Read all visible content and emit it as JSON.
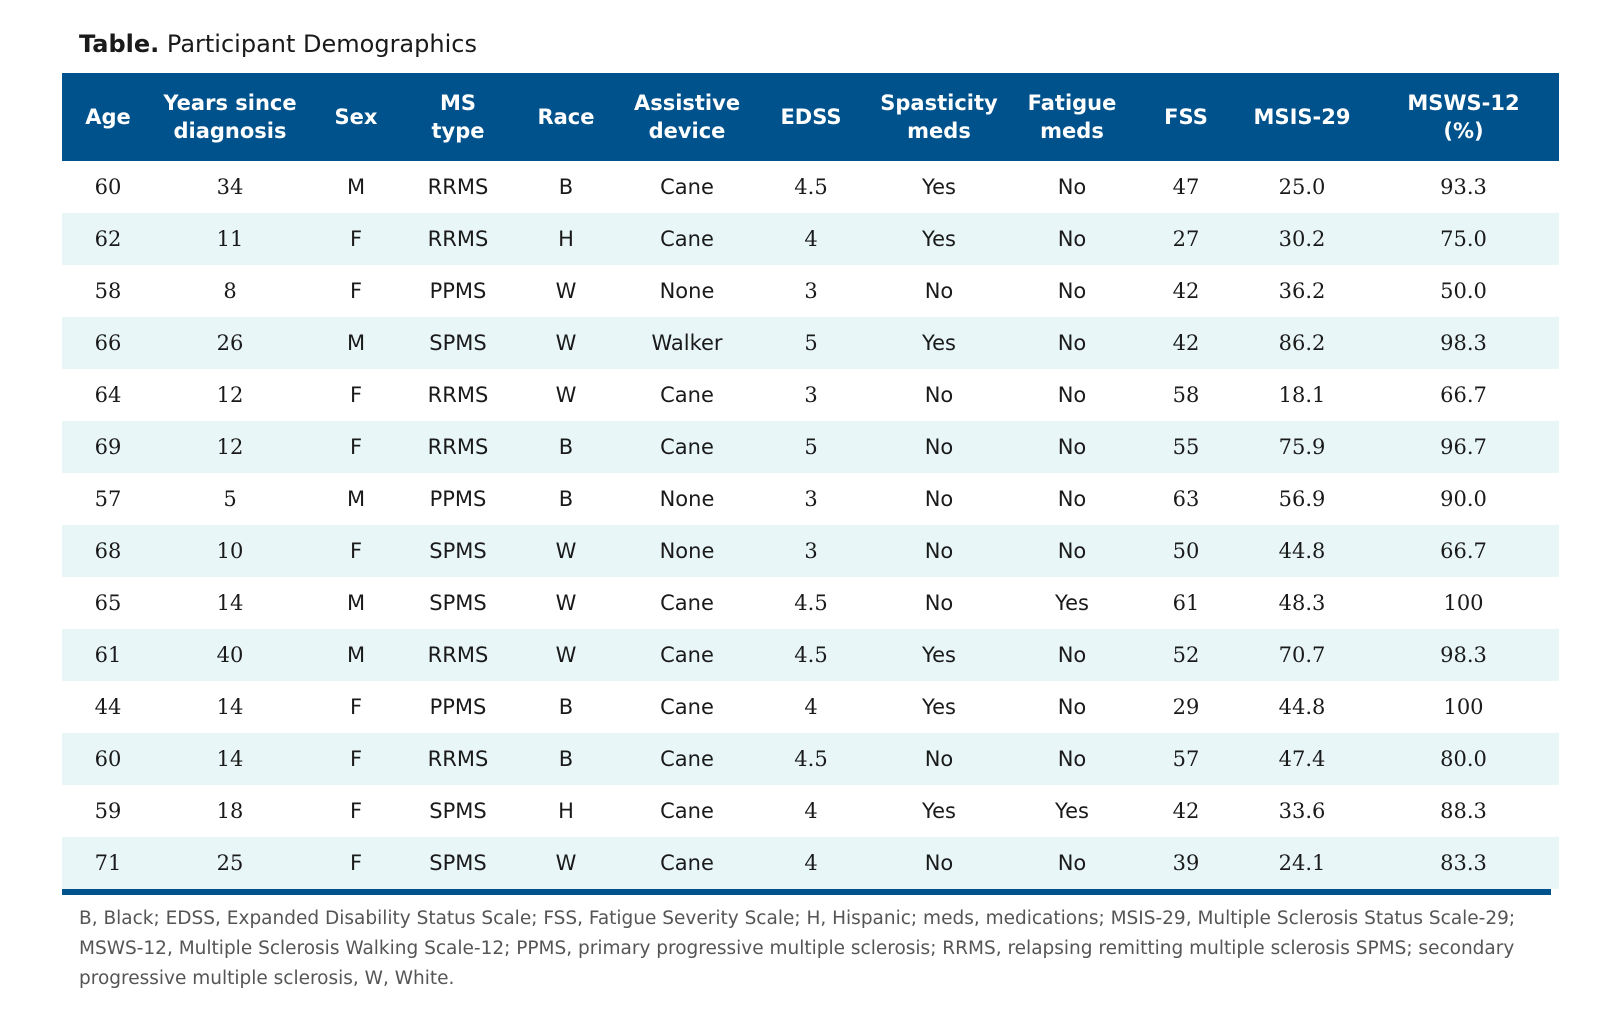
{
  "title": {
    "lead": "Table.",
    "text": "Participant Demographics"
  },
  "table": {
    "columns": [
      {
        "key": "age",
        "line1": "Age",
        "line2": ""
      },
      {
        "key": "years",
        "line1": "Years since",
        "line2": "diagnosis"
      },
      {
        "key": "sex",
        "line1": "Sex",
        "line2": ""
      },
      {
        "key": "ms_type",
        "line1": "MS",
        "line2": "type"
      },
      {
        "key": "race",
        "line1": "Race",
        "line2": ""
      },
      {
        "key": "assistive",
        "line1": "Assistive",
        "line2": "device"
      },
      {
        "key": "edss",
        "line1": "EDSS",
        "line2": ""
      },
      {
        "key": "spasticity",
        "line1": "Spasticity",
        "line2": "meds"
      },
      {
        "key": "fatigue",
        "line1": "Fatigue",
        "line2": "meds"
      },
      {
        "key": "fss",
        "line1": "FSS",
        "line2": ""
      },
      {
        "key": "msis",
        "line1": "MSIS-29",
        "line2": ""
      },
      {
        "key": "msws",
        "line1": "MSWS-12",
        "line2": "(%)"
      }
    ],
    "rows": [
      [
        "60",
        "34",
        "M",
        "RRMS",
        "B",
        "Cane",
        "4.5",
        "Yes",
        "No",
        "47",
        "25.0",
        "93.3"
      ],
      [
        "62",
        "11",
        "F",
        "RRMS",
        "H",
        "Cane",
        "4",
        "Yes",
        "No",
        "27",
        "30.2",
        "75.0"
      ],
      [
        "58",
        "8",
        "F",
        "PPMS",
        "W",
        "None",
        "3",
        "No",
        "No",
        "42",
        "36.2",
        "50.0"
      ],
      [
        "66",
        "26",
        "M",
        "SPMS",
        "W",
        "Walker",
        "5",
        "Yes",
        "No",
        "42",
        "86.2",
        "98.3"
      ],
      [
        "64",
        "12",
        "F",
        "RRMS",
        "W",
        "Cane",
        "3",
        "No",
        "No",
        "58",
        "18.1",
        "66.7"
      ],
      [
        "69",
        "12",
        "F",
        "RRMS",
        "B",
        "Cane",
        "5",
        "No",
        "No",
        "55",
        "75.9",
        "96.7"
      ],
      [
        "57",
        "5",
        "M",
        "PPMS",
        "B",
        "None",
        "3",
        "No",
        "No",
        "63",
        "56.9",
        "90.0"
      ],
      [
        "68",
        "10",
        "F",
        "SPMS",
        "W",
        "None",
        "3",
        "No",
        "No",
        "50",
        "44.8",
        "66.7"
      ],
      [
        "65",
        "14",
        "M",
        "SPMS",
        "W",
        "Cane",
        "4.5",
        "No",
        "Yes",
        "61",
        "48.3",
        "100"
      ],
      [
        "61",
        "40",
        "M",
        "RRMS",
        "W",
        "Cane",
        "4.5",
        "Yes",
        "No",
        "52",
        "70.7",
        "98.3"
      ],
      [
        "44",
        "14",
        "F",
        "PPMS",
        "B",
        "Cane",
        "4",
        "Yes",
        "No",
        "29",
        "44.8",
        "100"
      ],
      [
        "60",
        "14",
        "F",
        "RRMS",
        "B",
        "Cane",
        "4.5",
        "No",
        "No",
        "57",
        "47.4",
        "80.0"
      ],
      [
        "59",
        "18",
        "F",
        "SPMS",
        "H",
        "Cane",
        "4",
        "Yes",
        "Yes",
        "42",
        "33.6",
        "88.3"
      ],
      [
        "71",
        "25",
        "F",
        "SPMS",
        "W",
        "Cane",
        "4",
        "No",
        "No",
        "39",
        "24.1",
        "83.3"
      ]
    ]
  },
  "footnote": "B, Black; EDSS, Expanded Disability Status Scale; FSS, Fatigue Severity Scale; H, Hispanic; meds, medications; MSIS-29, Multiple Sclerosis Status Scale-29; MSWS-12, Multiple Sclerosis Walking Scale-12; PPMS, primary progressive multiple sclerosis; RRMS, relapsing remitting multiple sclerosis SPMS; secondary progressive multiple sclerosis, W, White.",
  "colors": {
    "header_bg": "#00528c",
    "stripe_bg": "#e8f6f8",
    "footnote_text": "#555555"
  }
}
